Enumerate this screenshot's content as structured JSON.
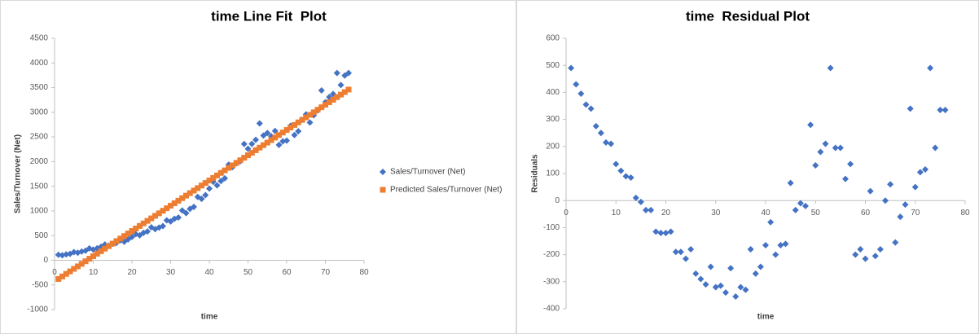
{
  "chart_data": [
    {
      "type": "scatter",
      "title": "time Line Fit  Plot",
      "x_label": "time",
      "y_label": "Sales/Turnover (Net)",
      "x": [
        1,
        2,
        3,
        4,
        5,
        6,
        7,
        8,
        9,
        10,
        11,
        12,
        13,
        14,
        15,
        16,
        17,
        18,
        19,
        20,
        21,
        22,
        23,
        24,
        25,
        26,
        27,
        28,
        29,
        30,
        31,
        32,
        33,
        34,
        35,
        36,
        37,
        38,
        39,
        40,
        41,
        42,
        43,
        44,
        45,
        46,
        47,
        48,
        49,
        50,
        51,
        52,
        53,
        54,
        55,
        56,
        57,
        58,
        59,
        60,
        61,
        62,
        63,
        64,
        65,
        66,
        67,
        68,
        69,
        70,
        71,
        72,
        73,
        74,
        75,
        76
      ],
      "series": [
        {
          "name": "Sales/Turnover (Net)",
          "color": "#4472c4",
          "marker": "diamond",
          "values": [
            110,
            101,
            118,
            129,
            165,
            151,
            177,
            194,
            240,
            216,
            242,
            273,
            320,
            296,
            332,
            353,
            404,
            376,
            422,
            473,
            529,
            505,
            557,
            583,
            669,
            630,
            661,
            693,
            809,
            785,
            841,
            867,
            1009,
            955,
            1041,
            1082,
            1283,
            1245,
            1321,
            1452,
            1588,
            1519,
            1606,
            1662,
            1938,
            1889,
            1965,
            2007,
            2358,
            2259,
            2360,
            2441,
            2773,
            2529,
            2580,
            2516,
            2622,
            2339,
            2410,
            2426,
            2727,
            2538,
            2615,
            2846,
            2957,
            2793,
            2939,
            3036,
            3442,
            3203,
            3309,
            3370,
            3797,
            3553,
            3744,
            3795
          ]
        },
        {
          "name": "Predicted Sales/Turnover (Net)",
          "color": "#ed7d31",
          "marker": "square",
          "values": [
            -380,
            -329,
            -277,
            -226,
            -175,
            -124,
            -73,
            -21,
            30,
            81,
            132,
            183,
            235,
            286,
            337,
            388,
            439,
            491,
            542,
            593,
            644,
            695,
            747,
            798,
            849,
            900,
            951,
            1003,
            1054,
            1105,
            1156,
            1207,
            1259,
            1310,
            1361,
            1412,
            1463,
            1515,
            1566,
            1617,
            1668,
            1719,
            1771,
            1822,
            1873,
            1924,
            1975,
            2027,
            2078,
            2129,
            2180,
            2231,
            2283,
            2334,
            2385,
            2436,
            2487,
            2539,
            2590,
            2641,
            2692,
            2743,
            2795,
            2846,
            2897,
            2948,
            2999,
            3051,
            3102,
            3153,
            3204,
            3255,
            3307,
            3358,
            3409,
            3460
          ]
        }
      ],
      "xlim": [
        0,
        80
      ],
      "xticks": [
        0,
        10,
        20,
        30,
        40,
        50,
        60,
        70,
        80
      ],
      "ylim": [
        -1000,
        4500
      ],
      "yticks": [
        -1000,
        -500,
        0,
        500,
        1000,
        1500,
        2000,
        2500,
        3000,
        3500,
        4000,
        4500
      ],
      "legend": "right"
    },
    {
      "type": "scatter",
      "title": "time  Residual Plot",
      "x_label": "time",
      "y_label": "Residuals",
      "x": [
        1,
        2,
        3,
        4,
        5,
        6,
        7,
        8,
        9,
        10,
        11,
        12,
        13,
        14,
        15,
        16,
        17,
        18,
        19,
        20,
        21,
        22,
        23,
        24,
        25,
        26,
        27,
        28,
        29,
        30,
        31,
        32,
        33,
        34,
        35,
        36,
        37,
        38,
        39,
        40,
        41,
        42,
        43,
        44,
        45,
        46,
        47,
        48,
        49,
        50,
        51,
        52,
        53,
        54,
        55,
        56,
        57,
        58,
        59,
        60,
        61,
        62,
        63,
        64,
        65,
        66,
        67,
        68,
        69,
        70,
        71,
        72,
        73,
        74,
        75,
        76
      ],
      "series": [
        {
          "color": "#4472c4",
          "marker": "diamond",
          "values": [
            490,
            430,
            395,
            355,
            340,
            275,
            250,
            215,
            210,
            135,
            110,
            90,
            85,
            10,
            -5,
            -35,
            -35,
            -115,
            -120,
            -120,
            -115,
            -190,
            -190,
            -215,
            -180,
            -270,
            -290,
            -310,
            -245,
            -320,
            -315,
            -340,
            -250,
            -355,
            -320,
            -330,
            -180,
            -270,
            -245,
            -165,
            -80,
            -200,
            -165,
            -160,
            65,
            -35,
            -10,
            -20,
            280,
            130,
            180,
            210,
            490,
            195,
            195,
            80,
            135,
            -200,
            -180,
            -215,
            35,
            -205,
            -180,
            0,
            60,
            -155,
            -60,
            -15,
            340,
            50,
            105,
            115,
            490,
            195,
            335,
            335
          ]
        }
      ],
      "xlim": [
        0,
        80
      ],
      "xticks": [
        0,
        10,
        20,
        30,
        40,
        50,
        60,
        70,
        80
      ],
      "ylim": [
        -400,
        600
      ],
      "yticks": [
        -400,
        -300,
        -200,
        -100,
        0,
        100,
        200,
        300,
        400,
        500,
        600
      ]
    }
  ]
}
